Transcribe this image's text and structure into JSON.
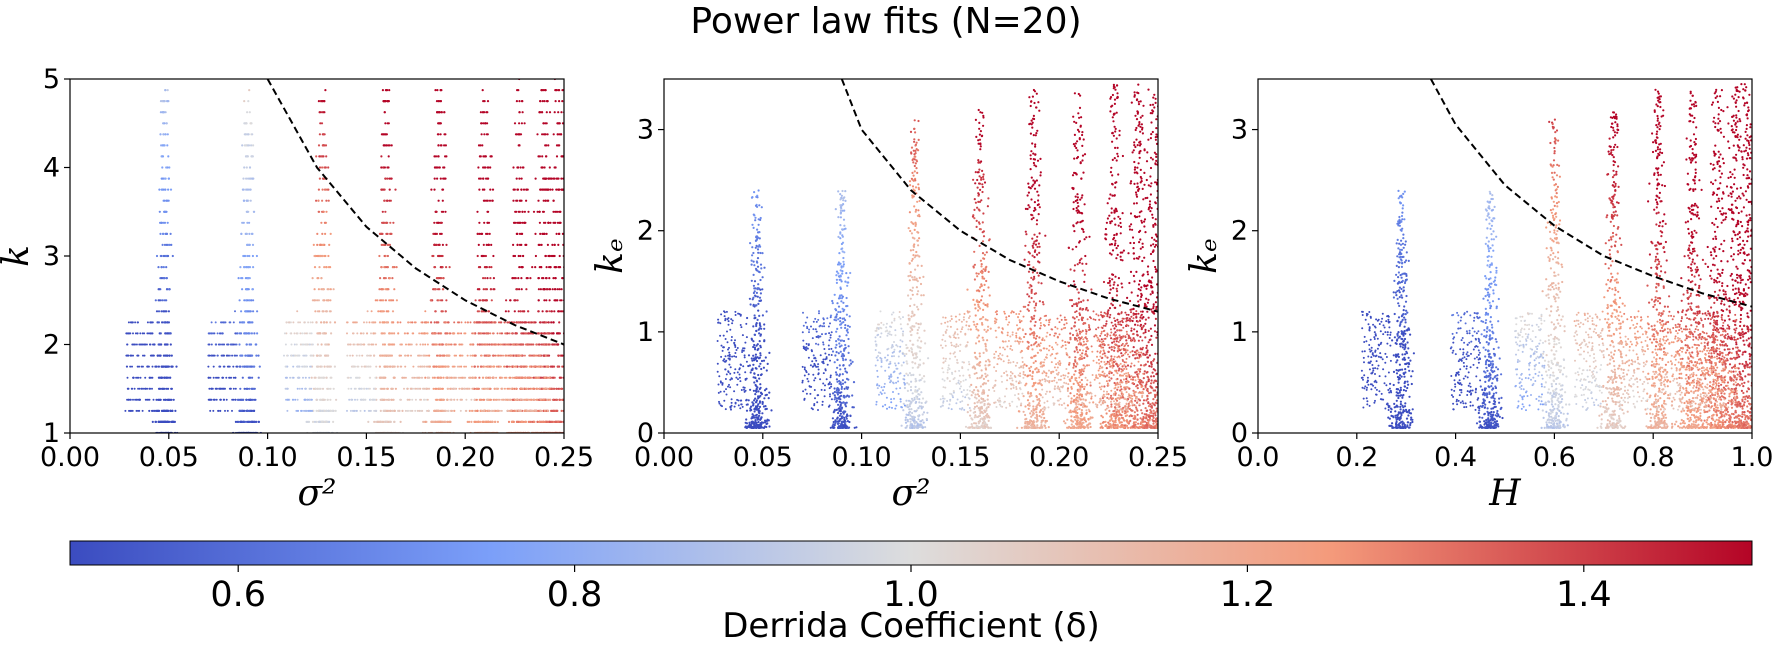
{
  "title": "Power law fits (N=20)",
  "colors": {
    "coolwarm_low": "#3b4cc0",
    "coolwarm_mid": "#dddddd",
    "coolwarm_high": "#b40426",
    "fit_line": "#000000"
  },
  "chart_data": [
    {
      "type": "scatter",
      "panel": "left",
      "xlabel": "σ²",
      "ylabel": "k",
      "xlim": [
        0.0,
        0.25
      ],
      "ylim": [
        1,
        5
      ],
      "x_ticks": [
        "0.00",
        "0.05",
        "0.10",
        "0.15",
        "0.20",
        "0.25"
      ],
      "y_ticks": [
        "1",
        "2",
        "3",
        "4",
        "5"
      ],
      "grid": false,
      "discrete_y": true,
      "fit_line": {
        "style": "dashed",
        "x": [
          0.1,
          0.125,
          0.15,
          0.175,
          0.2,
          0.225,
          0.25
        ],
        "y": [
          5.0,
          4.0,
          3.33,
          2.86,
          2.5,
          2.22,
          2.0
        ]
      },
      "clusters": [
        {
          "x": 0.048,
          "peak_y": 4.9,
          "delta": 0.55
        },
        {
          "x": 0.09,
          "peak_y": 4.85,
          "delta": 0.7
        },
        {
          "x": 0.128,
          "peak_y": 4.9,
          "delta": 1.15
        },
        {
          "x": 0.16,
          "peak_y": 4.9,
          "delta": 1.25
        },
        {
          "x": 0.187,
          "peak_y": 4.9,
          "delta": 1.35
        },
        {
          "x": 0.21,
          "peak_y": 4.85,
          "delta": 1.4
        },
        {
          "x": 0.228,
          "peak_y": 4.95,
          "delta": 1.45
        },
        {
          "x": 0.24,
          "peak_y": 4.95,
          "delta": 1.48
        },
        {
          "x": 0.248,
          "peak_y": 4.95,
          "delta": 1.5
        }
      ]
    },
    {
      "type": "scatter",
      "panel": "middle",
      "xlabel": "σ²",
      "ylabel": "kₑ",
      "xlim": [
        0.0,
        0.25
      ],
      "ylim": [
        0,
        3.5
      ],
      "x_ticks": [
        "0.00",
        "0.05",
        "0.10",
        "0.15",
        "0.20",
        "0.25"
      ],
      "y_ticks": [
        "0",
        "1",
        "2",
        "3"
      ],
      "grid": false,
      "discrete_y": false,
      "fit_line": {
        "style": "dashed",
        "x": [
          0.09,
          0.1,
          0.125,
          0.15,
          0.175,
          0.2,
          0.225,
          0.25
        ],
        "y": [
          3.5,
          3.0,
          2.4,
          2.0,
          1.71,
          1.5,
          1.33,
          1.2
        ]
      },
      "clusters": [
        {
          "x": 0.047,
          "peak_y": 2.4,
          "delta": 0.55
        },
        {
          "x": 0.09,
          "peak_y": 2.4,
          "delta": 0.7
        },
        {
          "x": 0.127,
          "peak_y": 3.1,
          "delta": 1.1
        },
        {
          "x": 0.16,
          "peak_y": 3.2,
          "delta": 1.25
        },
        {
          "x": 0.187,
          "peak_y": 3.4,
          "delta": 1.35
        },
        {
          "x": 0.21,
          "peak_y": 3.4,
          "delta": 1.4
        },
        {
          "x": 0.228,
          "peak_y": 3.45,
          "delta": 1.45
        },
        {
          "x": 0.24,
          "peak_y": 3.45,
          "delta": 1.48
        },
        {
          "x": 0.248,
          "peak_y": 3.45,
          "delta": 1.5
        }
      ]
    },
    {
      "type": "scatter",
      "panel": "right",
      "xlabel": "H",
      "ylabel": "kₑ",
      "xlim": [
        0.0,
        1.0
      ],
      "ylim": [
        0,
        3.5
      ],
      "x_ticks": [
        "0.0",
        "0.2",
        "0.4",
        "0.6",
        "0.8",
        "1.0"
      ],
      "y_ticks": [
        "0",
        "1",
        "2",
        "3"
      ],
      "grid": false,
      "discrete_y": false,
      "fit_line": {
        "style": "dashed",
        "x": [
          0.35,
          0.4,
          0.5,
          0.6,
          0.7,
          0.8,
          0.9,
          1.0
        ],
        "y": [
          3.5,
          3.05,
          2.45,
          2.05,
          1.75,
          1.55,
          1.38,
          1.25
        ]
      },
      "clusters": [
        {
          "x": 0.29,
          "peak_y": 2.4,
          "delta": 0.55
        },
        {
          "x": 0.47,
          "peak_y": 2.4,
          "delta": 0.7
        },
        {
          "x": 0.6,
          "peak_y": 3.1,
          "delta": 1.1
        },
        {
          "x": 0.72,
          "peak_y": 3.2,
          "delta": 1.25
        },
        {
          "x": 0.81,
          "peak_y": 3.4,
          "delta": 1.35
        },
        {
          "x": 0.88,
          "peak_y": 3.4,
          "delta": 1.4
        },
        {
          "x": 0.93,
          "peak_y": 3.45,
          "delta": 1.45
        },
        {
          "x": 0.965,
          "peak_y": 3.45,
          "delta": 1.48
        },
        {
          "x": 0.99,
          "peak_y": 3.45,
          "delta": 1.5
        }
      ]
    }
  ],
  "colorbar": {
    "label": "Derrida Coefficient (δ)",
    "range": [
      0.5,
      1.5
    ],
    "ticks": [
      0.6,
      0.8,
      1.0,
      1.2,
      1.4
    ],
    "tick_labels": [
      "0.6",
      "0.8",
      "1.0",
      "1.2",
      "1.4"
    ]
  }
}
